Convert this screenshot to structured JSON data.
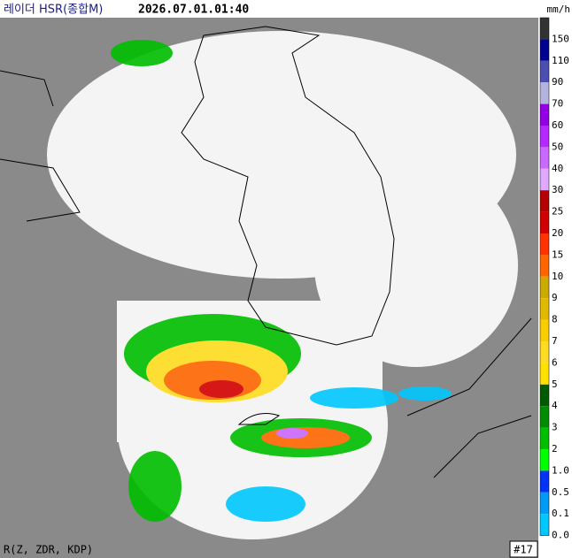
{
  "header": {
    "title": "레이더 HSR(종합M)",
    "timestamp": "2026.07.01.01:40"
  },
  "legend": {
    "unit": "mm/h",
    "items": [
      {
        "label": "150",
        "color": "#333333"
      },
      {
        "label": "110",
        "color": "#000390"
      },
      {
        "label": "90",
        "color": "#4c4eb1"
      },
      {
        "label": "70",
        "color": "#b3b4de"
      },
      {
        "label": "60",
        "color": "#9300e4"
      },
      {
        "label": "50",
        "color": "#b329ff"
      },
      {
        "label": "40",
        "color": "#c969ff"
      },
      {
        "label": "30",
        "color": "#e0a9ff"
      },
      {
        "label": "25",
        "color": "#b40000"
      },
      {
        "label": "20",
        "color": "#d20000"
      },
      {
        "label": "15",
        "color": "#ff3200"
      },
      {
        "label": "10",
        "color": "#ff6600"
      },
      {
        "label": "9",
        "color": "#ccaa00"
      },
      {
        "label": "8",
        "color": "#e0b900"
      },
      {
        "label": "7",
        "color": "#f9cd00"
      },
      {
        "label": "6",
        "color": "#ffdc1f"
      },
      {
        "label": "5",
        "color": "#ffe100"
      },
      {
        "label": "4",
        "color": "#005a00"
      },
      {
        "label": "3",
        "color": "#008c00"
      },
      {
        "label": "2",
        "color": "#00be00"
      },
      {
        "label": "1.0",
        "color": "#00ff00"
      },
      {
        "label": "0.5",
        "color": "#0033f5"
      },
      {
        "label": "0.1",
        "color": "#009bf5"
      },
      {
        "label": "0.0",
        "color": "#00c8ff"
      }
    ]
  },
  "footer": {
    "method": "R(Z, ZDR, KDP)",
    "frame": "#17"
  }
}
